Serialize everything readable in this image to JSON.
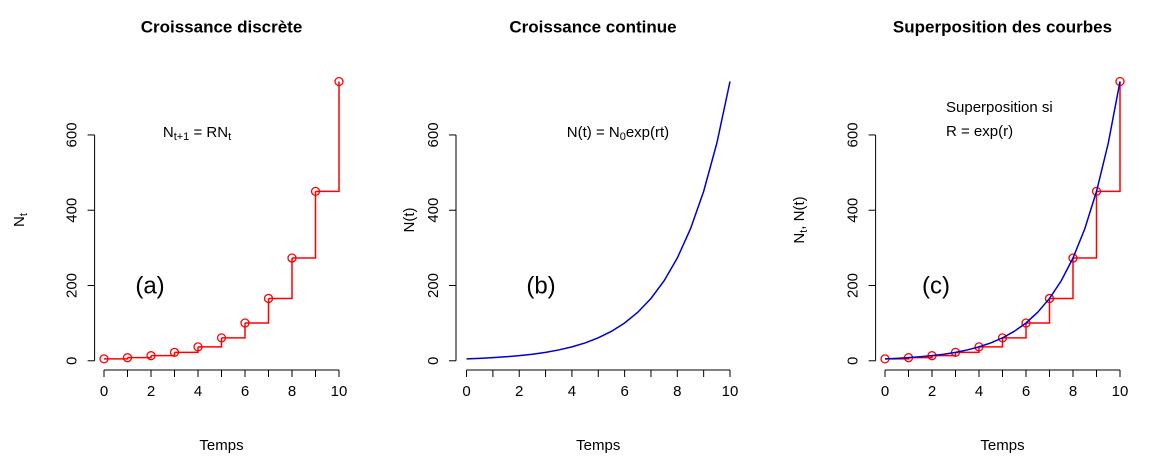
{
  "chart_data": [
    {
      "type": "step",
      "title": "Croissance discrète",
      "xlabel": "Temps",
      "ylabel": [
        "N",
        "t"
      ],
      "equation": [
        "N",
        "t+1",
        " = RN",
        "t"
      ],
      "panel_label": "(a)",
      "xlim": [
        -0.4,
        10.4
      ],
      "ylim": [
        -24.5,
        771.5
      ],
      "xticks": [
        0,
        2,
        4,
        6,
        8,
        10
      ],
      "xminorticks": [
        1,
        3,
        5,
        7,
        9
      ],
      "yticks": [
        0,
        200,
        400,
        600
      ],
      "series": [
        {
          "style": "step",
          "color": "#ff0000",
          "x": [
            0,
            1,
            2,
            3,
            4,
            5,
            6,
            7,
            8,
            9,
            10
          ],
          "values": [
            5,
            8.24,
            13.59,
            22.41,
            36.95,
            60.91,
            100.43,
            165.58,
            272.99,
            450.09,
            742.07
          ]
        }
      ]
    },
    {
      "type": "line",
      "title": "Croissance continue",
      "xlabel": "Temps",
      "ylabel": [
        "N(t)"
      ],
      "equation": [
        "N(t) = N",
        "0",
        "exp(rt)"
      ],
      "panel_label": "(b)",
      "xlim": [
        -0.4,
        10
      ],
      "ylim": [
        -24.5,
        771.5
      ],
      "xticks": [
        0,
        2,
        4,
        6,
        8,
        10
      ],
      "xminorticks": [
        1,
        3,
        5,
        7,
        9
      ],
      "yticks": [
        0,
        200,
        400,
        600
      ],
      "series": [
        {
          "style": "line",
          "color": "#0000cd",
          "x": [
            0,
            0.5,
            1,
            1.5,
            2,
            2.5,
            3,
            3.5,
            4,
            4.5,
            5,
            5.5,
            6,
            6.5,
            7,
            7.5,
            8,
            8.5,
            9,
            9.5,
            10
          ],
          "values": [
            5,
            6.42,
            8.24,
            10.59,
            13.59,
            17.45,
            22.41,
            28.77,
            36.95,
            47.44,
            60.91,
            78.22,
            100.43,
            128.96,
            165.58,
            212.61,
            272.99,
            350.53,
            450.09,
            577.92,
            742.07
          ]
        }
      ]
    },
    {
      "type": "combo",
      "title": "Superposition des courbes",
      "xlabel": "Temps",
      "ylabel": [
        "N",
        "t",
        ", N(t)"
      ],
      "note": [
        "Superposition si",
        "R = exp(r)"
      ],
      "panel_label": "(c)",
      "xlim": [
        -0.4,
        10.4
      ],
      "ylim": [
        -24.5,
        771.5
      ],
      "xticks": [
        0,
        2,
        4,
        6,
        8,
        10
      ],
      "xminorticks": [
        1,
        3,
        5,
        7,
        9
      ],
      "yticks": [
        0,
        200,
        400,
        600
      ],
      "series": [
        {
          "style": "step",
          "color": "#ff0000",
          "x": [
            0,
            1,
            2,
            3,
            4,
            5,
            6,
            7,
            8,
            9,
            10
          ],
          "values": [
            5,
            8.24,
            13.59,
            22.41,
            36.95,
            60.91,
            100.43,
            165.58,
            272.99,
            450.09,
            742.07
          ]
        },
        {
          "style": "line",
          "color": "#0000cd",
          "x": [
            0,
            0.5,
            1,
            1.5,
            2,
            2.5,
            3,
            3.5,
            4,
            4.5,
            5,
            5.5,
            6,
            6.5,
            7,
            7.5,
            8,
            8.5,
            9,
            9.5,
            10
          ],
          "values": [
            5,
            6.42,
            8.24,
            10.59,
            13.59,
            17.45,
            22.41,
            28.77,
            36.95,
            47.44,
            60.91,
            78.22,
            100.43,
            128.96,
            165.58,
            212.61,
            272.99,
            350.53,
            450.09,
            577.92,
            742.07
          ]
        }
      ]
    }
  ]
}
